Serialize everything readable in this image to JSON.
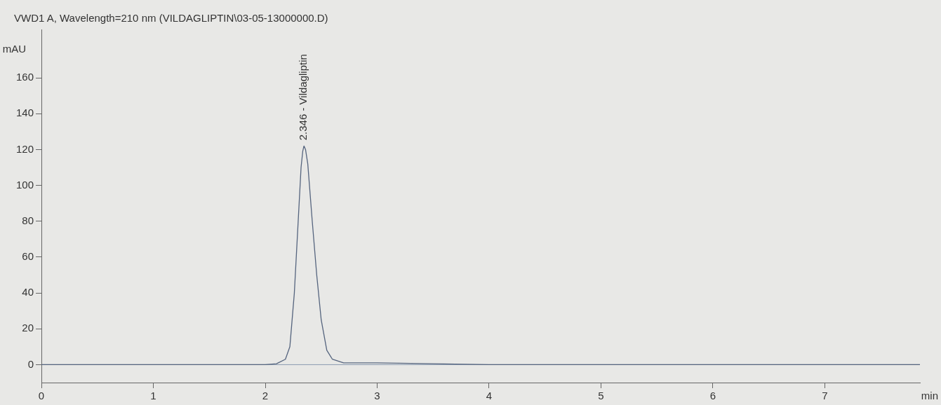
{
  "chart_data": {
    "type": "line",
    "title": "VWD1 A, Wavelength=210 nm (VILDAGLIPTIN\\03-05-13000000.D)",
    "xlabel": "min",
    "ylabel": "mAU",
    "series": [
      {
        "color": "#55647e",
        "x": [
          0,
          1,
          2,
          2.1,
          2.18,
          2.22,
          2.26,
          2.29,
          2.32,
          2.335,
          2.346,
          2.36,
          2.38,
          2.42,
          2.46,
          2.5,
          2.55,
          2.6,
          2.7,
          3,
          3.5,
          4,
          5,
          6,
          7,
          7.85
        ],
        "values": [
          0,
          0,
          0,
          0.5,
          3,
          10,
          40,
          75,
          110,
          119,
          122,
          120,
          112,
          80,
          50,
          25,
          8,
          3,
          1,
          1,
          0.5,
          0,
          0,
          0,
          0,
          0
        ]
      }
    ],
    "xlim": [
      0,
      7.85
    ],
    "xticks": [
      0,
      1,
      2,
      3,
      4,
      5,
      6,
      7
    ],
    "ylim": [
      -10,
      187
    ],
    "yticks": [
      0,
      20,
      40,
      60,
      80,
      100,
      120,
      140,
      160
    ],
    "annotations": [
      {
        "text": "2.346 - Vildagliptin",
        "x": 2.346,
        "y": 122
      }
    ],
    "ref_lines": [
      {
        "axis": "y",
        "value": 0,
        "color": "#8a9ab0"
      }
    ],
    "grid": false,
    "legend": false,
    "marker": "none",
    "line_style": "solid"
  }
}
